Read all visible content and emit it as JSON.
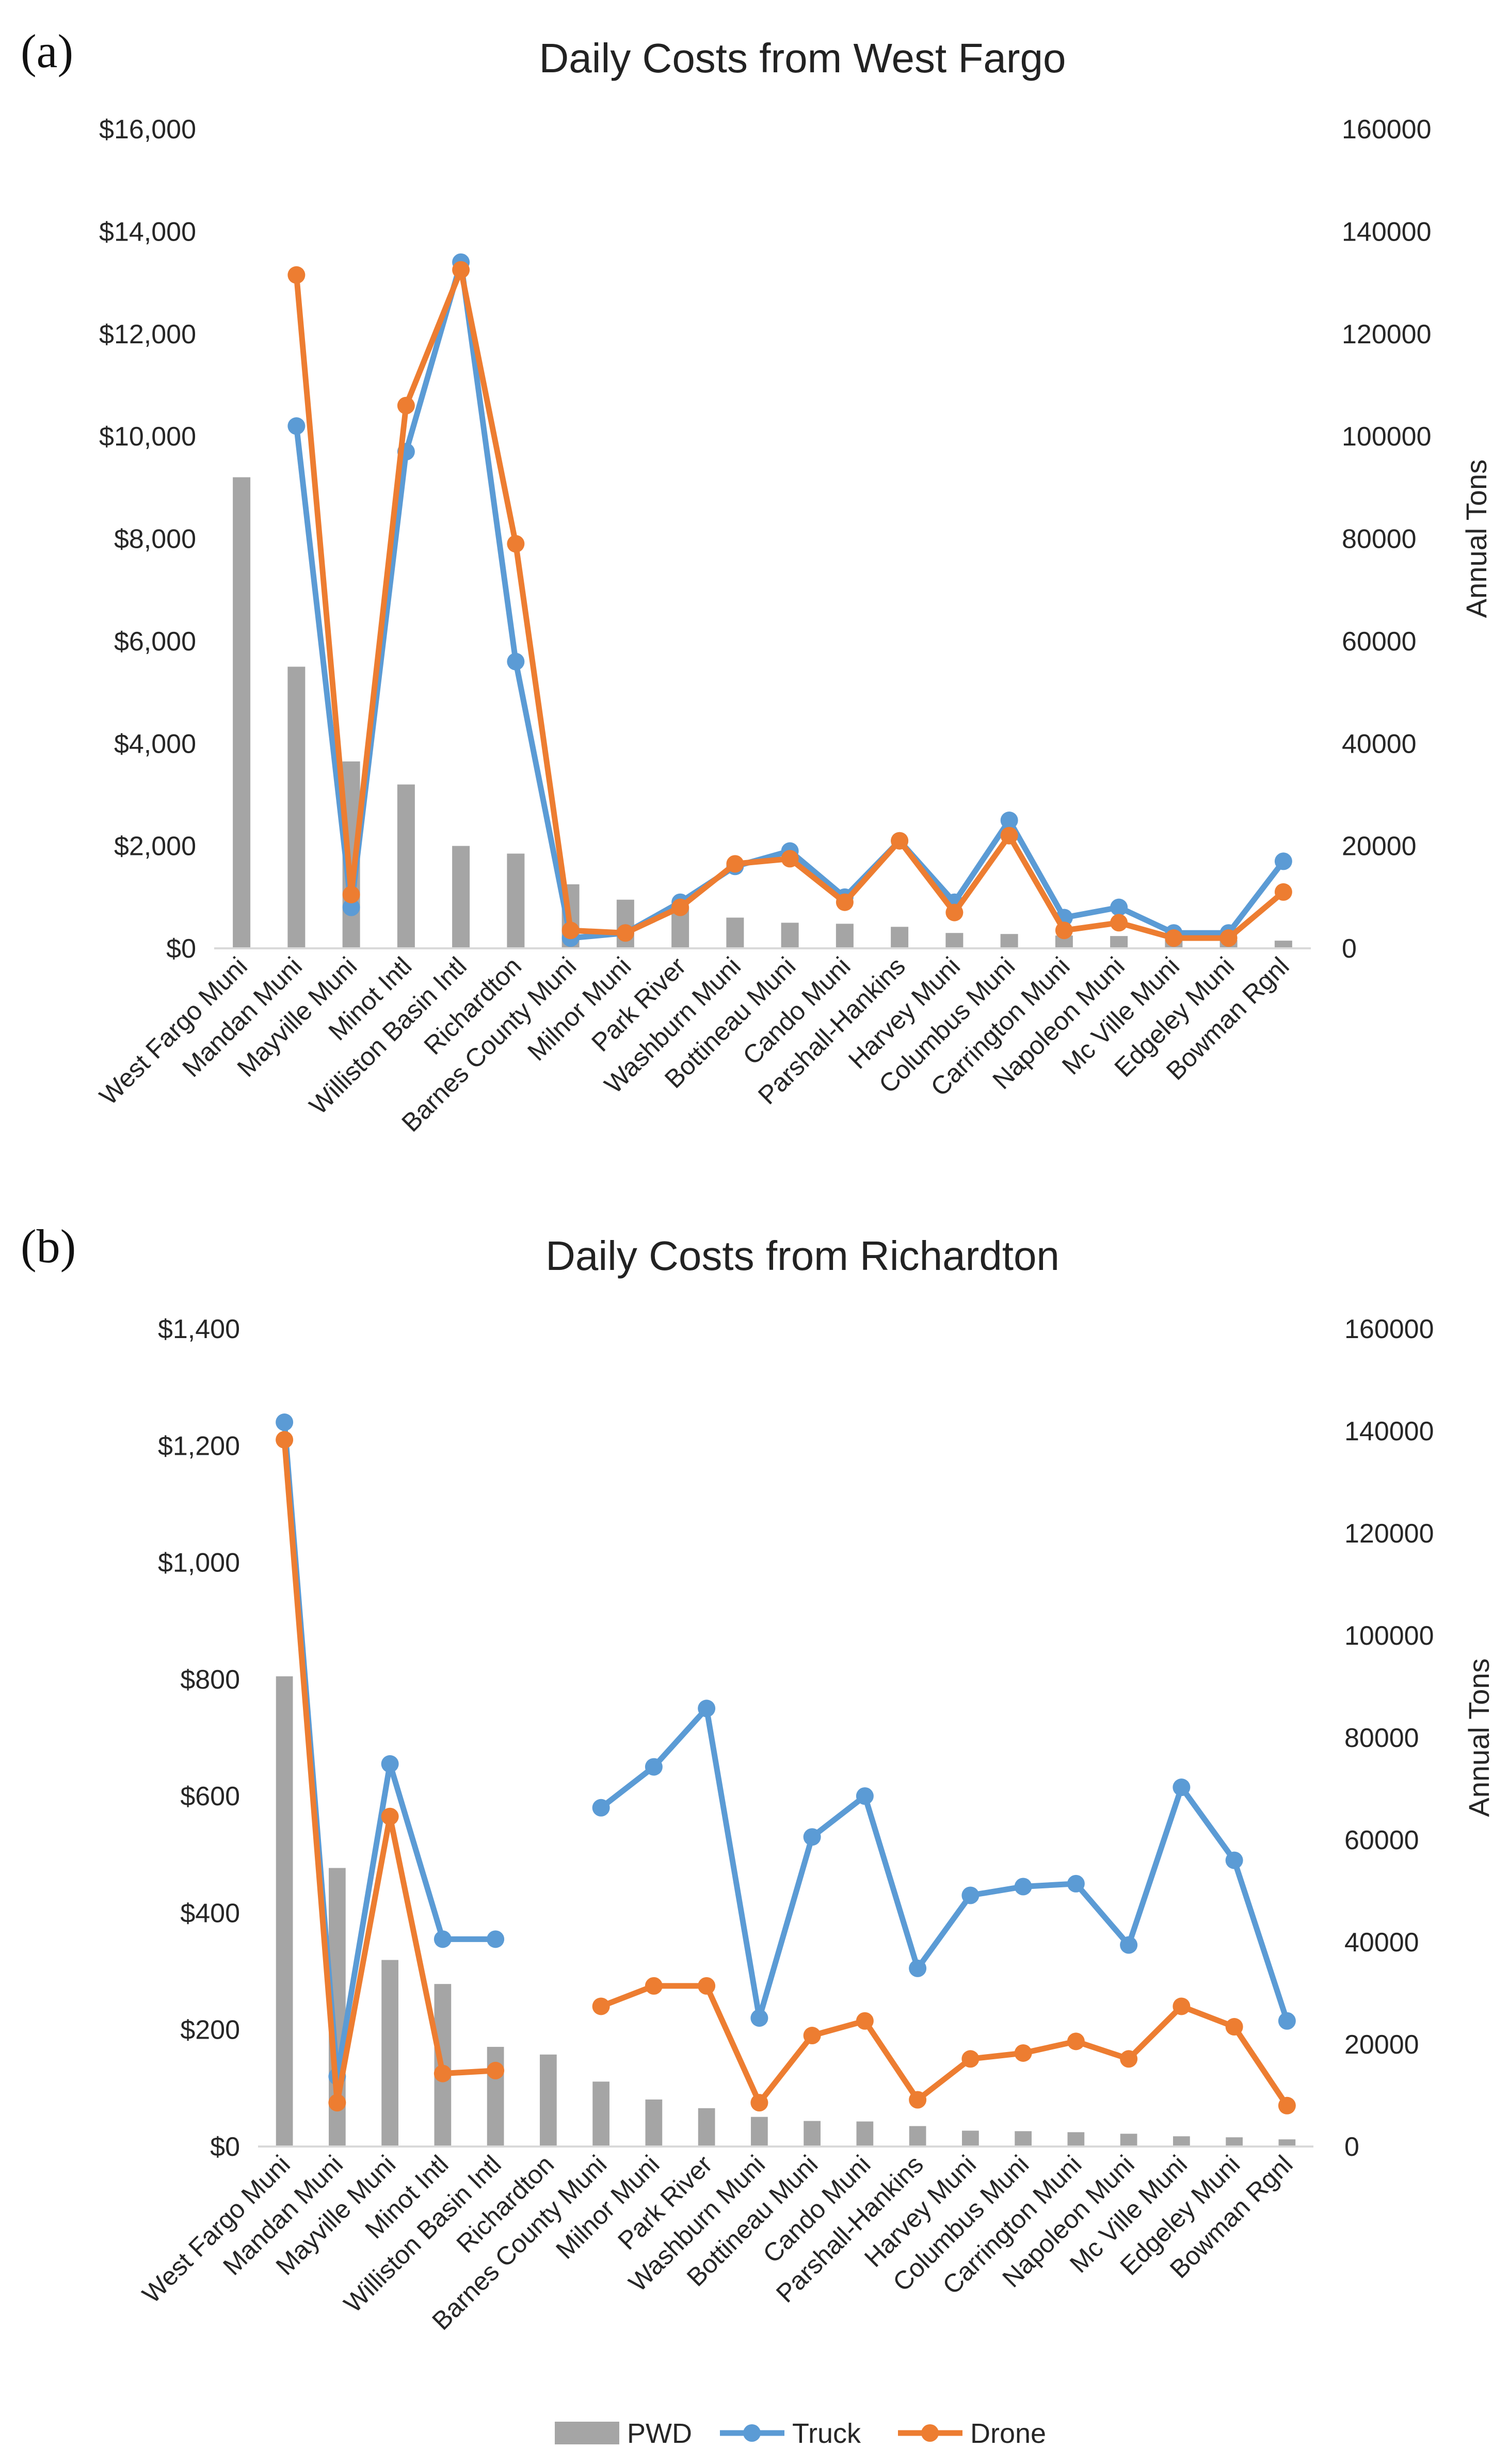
{
  "colors": {
    "pwd": "#a5a5a5",
    "truck": "#5b9bd5",
    "drone": "#ed7d31",
    "axis": "#d9d9d9"
  },
  "legend": [
    {
      "key": "pwd",
      "label": "PWD",
      "kind": "bar"
    },
    {
      "key": "truck",
      "label": "Truck",
      "kind": "line"
    },
    {
      "key": "drone",
      "label": "Drone",
      "kind": "line"
    }
  ],
  "chart_data": [
    {
      "panel": "(a)",
      "type": "bar+line",
      "title": "Daily Costs from West Fargo",
      "y_left": {
        "min": 0,
        "max": 16000,
        "ticks": [
          "$0",
          "$2,000",
          "$4,000",
          "$6,000",
          "$8,000",
          "$10,000",
          "$12,000",
          "$14,000",
          "$16,000"
        ]
      },
      "y_right": {
        "label": "Annual Tons",
        "min": 0,
        "max": 160000,
        "ticks": [
          "0",
          "20000",
          "40000",
          "60000",
          "80000",
          "100000",
          "120000",
          "140000",
          "160000"
        ]
      },
      "categories": [
        "West Fargo Muni",
        "Mandan Muni",
        "Mayville Muni",
        "Minot Intl",
        "Williston Basin Intl",
        "Richardton",
        "Barnes County Muni",
        "Milnor Muni",
        "Park River",
        "Washburn Muni",
        "Bottineau Muni",
        "Cando Muni",
        "Parshall-Hankins",
        "Harvey Muni",
        "Columbus Muni",
        "Carrington Muni",
        "Napoleon Muni",
        "Mc Ville Muni",
        "Edgeley Muni",
        "Bowman Rgnl"
      ],
      "series": [
        {
          "name": "PWD",
          "axis": "right",
          "kind": "bar",
          "values": [
            92000,
            55000,
            36500,
            32000,
            20000,
            18500,
            12500,
            9500,
            8000,
            6000,
            5000,
            4800,
            4200,
            3000,
            2800,
            2500,
            2400,
            1800,
            1600,
            1500
          ]
        },
        {
          "name": "Truck",
          "axis": "left",
          "kind": "line",
          "values": [
            null,
            10200,
            800,
            9700,
            13400,
            5600,
            200,
            300,
            900,
            1600,
            1900,
            1000,
            2100,
            900,
            2500,
            600,
            800,
            300,
            300,
            1700
          ]
        },
        {
          "name": "Drone",
          "axis": "left",
          "kind": "line",
          "values": [
            null,
            13150,
            1050,
            10600,
            13250,
            7900,
            350,
            300,
            800,
            1650,
            1750,
            900,
            2100,
            700,
            2200,
            350,
            500,
            200,
            200,
            1100
          ]
        }
      ]
    },
    {
      "panel": "(b)",
      "type": "bar+line",
      "title": "Daily Costs from Richardton",
      "y_left": {
        "min": 0,
        "max": 1400,
        "ticks": [
          "$0",
          "$200",
          "$400",
          "$600",
          "$800",
          "$1,000",
          "$1,200",
          "$1,400"
        ]
      },
      "y_right": {
        "label": "Annual Tons",
        "min": 0,
        "max": 160000,
        "ticks": [
          "0",
          "20000",
          "40000",
          "60000",
          "80000",
          "100000",
          "120000",
          "140000",
          "160000"
        ]
      },
      "categories": [
        "West Fargo Muni",
        "Mandan Muni",
        "Mayville Muni",
        "Minot Intl",
        "Williston Basin Intl",
        "Richardton",
        "Barnes County Muni",
        "Milnor Muni",
        "Park River",
        "Washburn Muni",
        "Bottineau Muni",
        "Cando Muni",
        "Parshall-Hankins",
        "Harvey Muni",
        "Columbus Muni",
        "Carrington Muni",
        "Napoleon Muni",
        "Mc Ville Muni",
        "Edgeley Muni",
        "Bowman Rgnl"
      ],
      "series": [
        {
          "name": "PWD",
          "axis": "right",
          "kind": "bar",
          "values": [
            92000,
            54500,
            36500,
            31800,
            19500,
            18000,
            12700,
            9200,
            7500,
            5800,
            5000,
            4900,
            4000,
            3100,
            3000,
            2800,
            2500,
            2000,
            1800,
            1400
          ]
        },
        {
          "name": "Truck",
          "axis": "left",
          "kind": "line",
          "values": [
            1240,
            120,
            655,
            355,
            355,
            null,
            580,
            650,
            750,
            220,
            530,
            600,
            305,
            430,
            445,
            450,
            345,
            615,
            490,
            215
          ]
        },
        {
          "name": "Drone",
          "axis": "left",
          "kind": "line",
          "values": [
            1210,
            75,
            565,
            125,
            130,
            null,
            240,
            275,
            275,
            75,
            190,
            215,
            80,
            150,
            160,
            180,
            150,
            240,
            205,
            70
          ]
        }
      ]
    }
  ]
}
